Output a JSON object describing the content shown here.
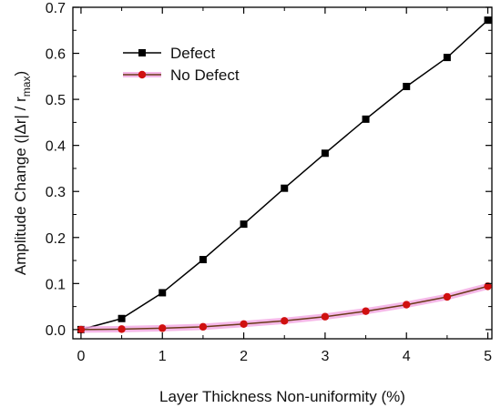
{
  "chart_data": {
    "type": "line",
    "xlabel": "Layer Thickness Non-uniformity (%)",
    "ylabel": {
      "main": "Amplitude Change (|Δr| / r",
      "sub": "max",
      "close": ")"
    },
    "xlim": [
      -0.1,
      5.05
    ],
    "ylim": [
      -0.02,
      0.7
    ],
    "xticks": [
      0,
      1,
      2,
      3,
      4,
      5
    ],
    "yticks": [
      0.0,
      0.1,
      0.2,
      0.3,
      0.4,
      0.5,
      0.6,
      0.7
    ],
    "ytick_labels": [
      "0.0",
      "0.1",
      "0.2",
      "0.3",
      "0.4",
      "0.5",
      "0.6",
      "0.7"
    ],
    "xtick_labels": [
      "0",
      "1",
      "2",
      "3",
      "4",
      "5"
    ],
    "legend_position": "top-left",
    "grid": false,
    "x": [
      0,
      0.5,
      1,
      1.5,
      2,
      2.5,
      3,
      3.5,
      4,
      4.5,
      5
    ],
    "series": [
      {
        "name": "Defect",
        "marker": "square",
        "color": "#000000",
        "values": [
          0.0,
          0.024,
          0.08,
          0.152,
          0.229,
          0.307,
          0.383,
          0.457,
          0.528,
          0.591,
          0.672
        ]
      },
      {
        "name": "No Defect",
        "marker": "circle",
        "color": "#d01010",
        "glow": "#f2a6e2",
        "values": [
          0.0,
          0.001,
          0.003,
          0.006,
          0.012,
          0.019,
          0.028,
          0.04,
          0.054,
          0.071,
          0.094
        ]
      }
    ]
  }
}
